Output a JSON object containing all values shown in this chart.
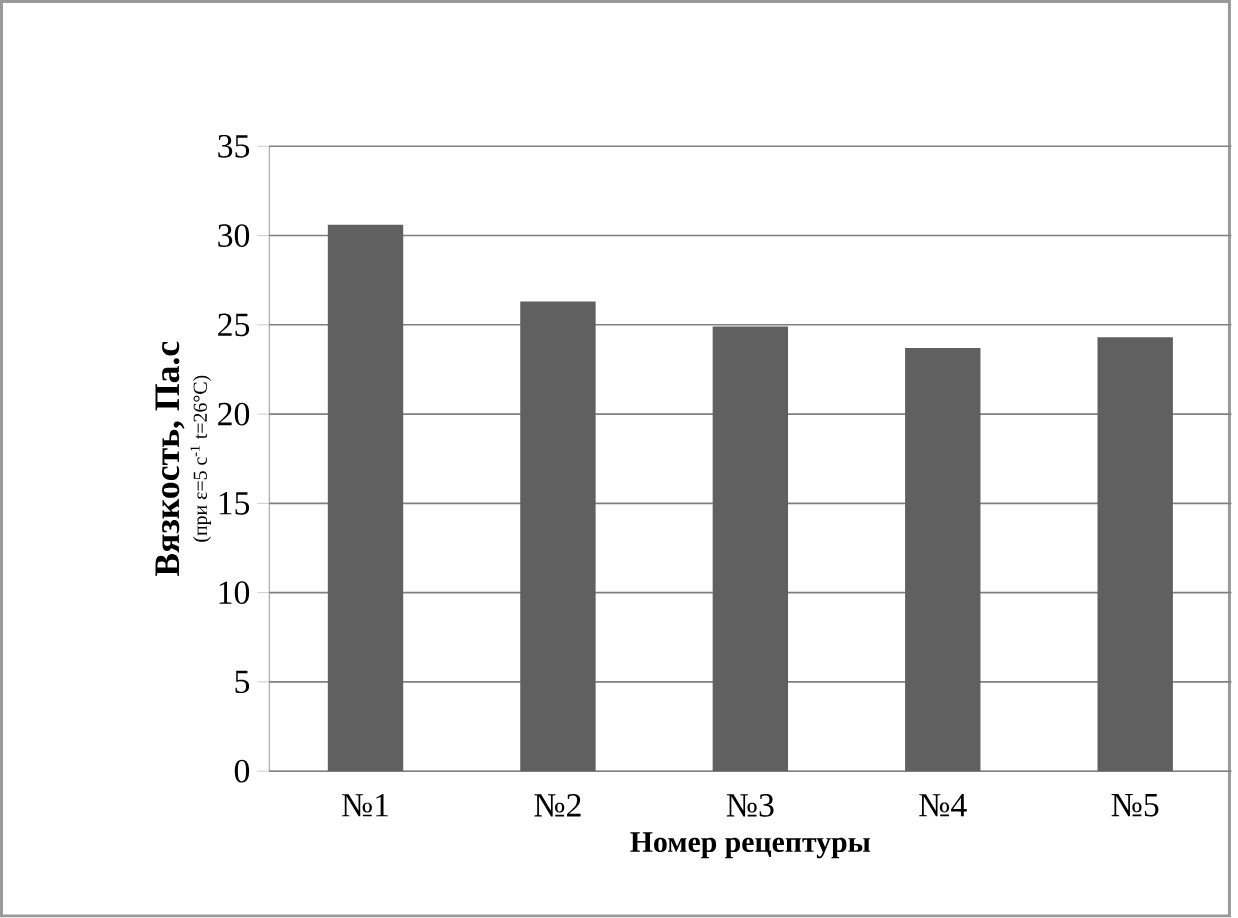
{
  "chart_data": {
    "type": "bar",
    "ylabel": "Вязкость,   Па.с",
    "xlabel": "Номер рецептуры",
    "annotations": [
      "(при ε=5 с$^{-1}$  t=26°C)"
    ],
    "categories": [
      "№1",
      "№2",
      "№3",
      "№4",
      "№5"
    ],
    "values": [
      30.6,
      26.3,
      24.9,
      23.7,
      24.3
    ],
    "color": "#606060",
    "ylim": [
      0,
      35
    ],
    "yticks": [
      0,
      5,
      10,
      15,
      20,
      25,
      30,
      35
    ],
    "grid": "y"
  }
}
